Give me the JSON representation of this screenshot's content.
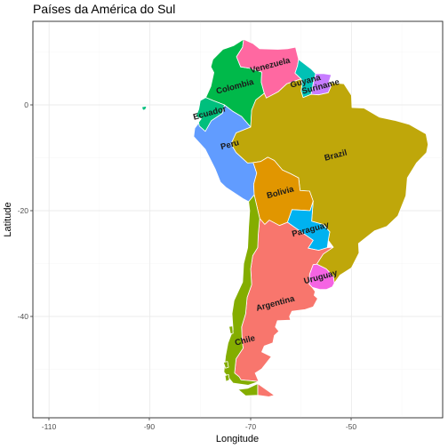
{
  "title": "Países da América do Sul",
  "xlabel": "Longitude",
  "ylabel": "Latitude",
  "x_ticks": [
    "-110",
    "-90",
    "-70",
    "-50"
  ],
  "y_ticks": [
    "0",
    "-20",
    "-40"
  ],
  "chart_data": {
    "type": "map",
    "title": "Países da América do Sul",
    "xlabel": "Longitude",
    "ylabel": "Latitude",
    "xlim": [
      -113,
      -27
    ],
    "ylim": [
      -59,
      17
    ],
    "x_ticks": [
      -110,
      -90,
      -70,
      -50
    ],
    "y_ticks": [
      0,
      -20,
      -40
    ],
    "grid": true,
    "legend": "none",
    "regions": [
      {
        "label": "Argentina",
        "color": "#F8766D",
        "label_lon": -65,
        "label_lat": -38
      },
      {
        "label": "Bolivia",
        "color": "#E19600",
        "label_lon": -64,
        "label_lat": -17
      },
      {
        "label": "Brazil",
        "color": "#BFA70A",
        "label_lon": -53,
        "label_lat": -10
      },
      {
        "label": "Chile",
        "color": "#84AD00",
        "label_lon": -71,
        "label_lat": -45
      },
      {
        "label": "Colombia",
        "color": "#00B94A",
        "label_lon": -73,
        "label_lat": 3
      },
      {
        "label": "Ecuador",
        "color": "#00BF7D",
        "label_lon": -78,
        "label_lat": -2
      },
      {
        "label": "Guyana",
        "color": "#00C1B5",
        "label_lon": -59,
        "label_lat": 4
      },
      {
        "label": "Paraguay",
        "color": "#00B2F0",
        "label_lon": -58,
        "label_lat": -24
      },
      {
        "label": "Peru",
        "color": "#619CFF",
        "label_lon": -74,
        "label_lat": -8
      },
      {
        "label": "Suriname",
        "color": "#C77CFF",
        "label_lon": -56,
        "label_lat": 3
      },
      {
        "label": "Uruguay",
        "color": "#F564E3",
        "label_lon": -56,
        "label_lat": -33
      },
      {
        "label": "Venezuela",
        "color": "#FF68A1",
        "label_lon": -66,
        "label_lat": 7
      }
    ]
  }
}
